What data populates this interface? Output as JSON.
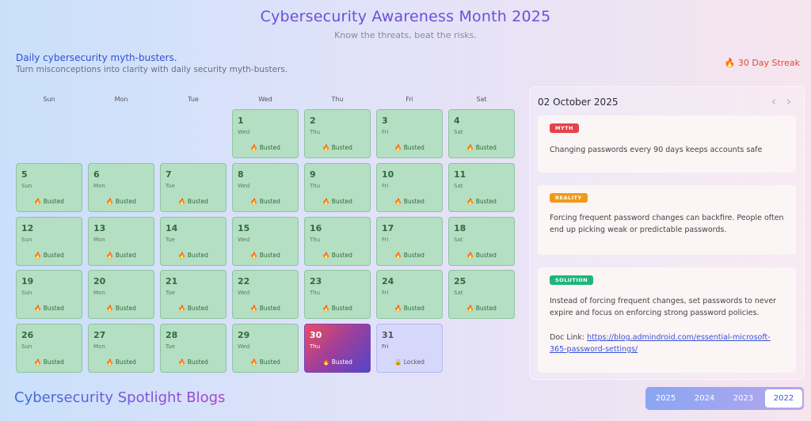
{
  "header": {
    "title": "Cybersecurity Awareness Month 2025",
    "subtitle": "Know the threats, beat the risks."
  },
  "section": {
    "title": "Daily cybersecurity myth-busters.",
    "subtitle": "Turn misconceptions into clarity with daily security myth-busters.",
    "streak": "🔥 30 Day Streak"
  },
  "calendar": {
    "weekdays": [
      "Sun",
      "Mon",
      "Tue",
      "Wed",
      "Thu",
      "Fri",
      "Sat"
    ],
    "days": [
      {
        "n": "1",
        "w": "Wed",
        "s": "🔥 Busted"
      },
      {
        "n": "2",
        "w": "Thu",
        "s": "🔥 Busted"
      },
      {
        "n": "3",
        "w": "Fri",
        "s": "🔥 Busted"
      },
      {
        "n": "4",
        "w": "Sat",
        "s": "🔥 Busted"
      },
      {
        "n": "5",
        "w": "Sun",
        "s": "🔥 Busted"
      },
      {
        "n": "6",
        "w": "Mon",
        "s": "🔥 Busted"
      },
      {
        "n": "7",
        "w": "Tue",
        "s": "🔥 Busted"
      },
      {
        "n": "8",
        "w": "Wed",
        "s": "🔥 Busted"
      },
      {
        "n": "9",
        "w": "Thu",
        "s": "🔥 Busted"
      },
      {
        "n": "10",
        "w": "Fri",
        "s": "🔥 Busted"
      },
      {
        "n": "11",
        "w": "Sat",
        "s": "🔥 Busted"
      },
      {
        "n": "12",
        "w": "Sun",
        "s": "🔥 Busted"
      },
      {
        "n": "13",
        "w": "Mon",
        "s": "🔥 Busted"
      },
      {
        "n": "14",
        "w": "Tue",
        "s": "🔥 Busted"
      },
      {
        "n": "15",
        "w": "Wed",
        "s": "🔥 Busted"
      },
      {
        "n": "16",
        "w": "Thu",
        "s": "🔥 Busted"
      },
      {
        "n": "17",
        "w": "Fri",
        "s": "🔥 Busted"
      },
      {
        "n": "18",
        "w": "Sat",
        "s": "🔥 Busted"
      },
      {
        "n": "19",
        "w": "Sun",
        "s": "🔥 Busted"
      },
      {
        "n": "20",
        "w": "Mon",
        "s": "🔥 Busted"
      },
      {
        "n": "21",
        "w": "Tue",
        "s": "🔥 Busted"
      },
      {
        "n": "22",
        "w": "Wed",
        "s": "🔥 Busted"
      },
      {
        "n": "23",
        "w": "Thu",
        "s": "🔥 Busted"
      },
      {
        "n": "24",
        "w": "Fri",
        "s": "🔥 Busted"
      },
      {
        "n": "25",
        "w": "Sat",
        "s": "🔥 Busted"
      },
      {
        "n": "26",
        "w": "Sun",
        "s": "🔥 Busted"
      },
      {
        "n": "27",
        "w": "Mon",
        "s": "🔥 Busted"
      },
      {
        "n": "28",
        "w": "Tue",
        "s": "🔥 Busted"
      },
      {
        "n": "29",
        "w": "Wed",
        "s": "🔥 Busted"
      },
      {
        "n": "30",
        "w": "Thu",
        "s": "🔥 Busted"
      },
      {
        "n": "31",
        "w": "Fri",
        "s": "🔒 Locked"
      }
    ]
  },
  "panel": {
    "date": "02 October 2025",
    "prev_icon": "‹",
    "next_icon": "›",
    "myth_label": "MYTH",
    "myth_text": "Changing passwords every 90 days keeps accounts safe",
    "reality_label": "REALITY",
    "reality_text": "Forcing frequent password changes can backfire. People often end up picking weak or predictable passwords.",
    "solution_label": "SOLUTION",
    "solution_text": "Instead of forcing frequent changes, set passwords to never expire and focus on enforcing strong password policies.",
    "doc_prefix": "Doc Link: ",
    "doc_link": "https://blog.admindroid.com/essential-microsoft-365-password-settings/",
    "colors": {
      "myth": "#e5434b",
      "reality": "#f29a16",
      "solution": "#1fb57a"
    }
  },
  "footer": {
    "blogs_title": "Cybersecurity Spotlight Blogs",
    "years": [
      "2025",
      "2024",
      "2023",
      "2022"
    ],
    "selected_year": "2022"
  }
}
